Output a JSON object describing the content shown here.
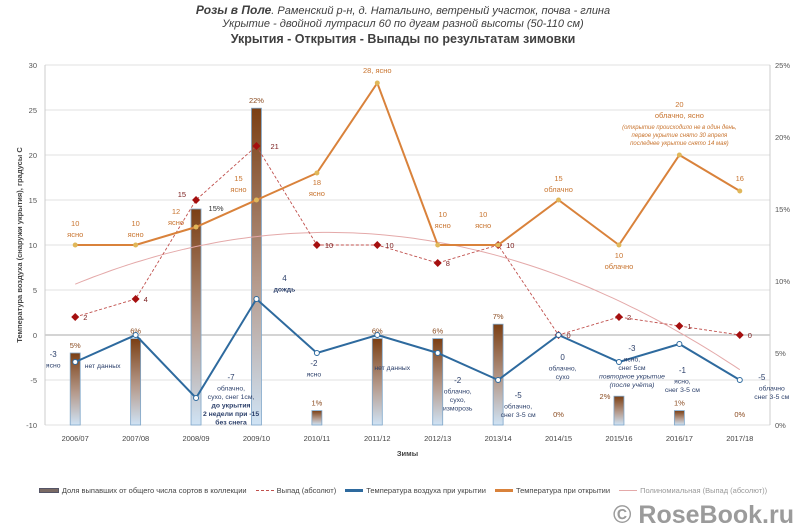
{
  "header": {
    "title_bold": "Розы в Поле",
    "title_rest": ". Раменский р-н, д. Натальино, ветреный участок, почва - глина",
    "subtitle": "Укрытие - двойной лутрасил 60 по дугам разной высоты (50-110 см)",
    "chart_title": "Укрытия - Открытия - Выпады по результатам зимовки"
  },
  "watermark": "© RoseBook.ru",
  "chart_data": {
    "type": "bar+line",
    "title": "Укрытия - Открытия - Выпады по результатам зимовки",
    "xlabel": "Зимы",
    "ylabel": "Температура воздуха (снаружи укрытия), градусы С",
    "ylim": [
      -10,
      30
    ],
    "y_ticks": [
      "-10",
      "-5",
      "0",
      "5",
      "10",
      "15",
      "20",
      "25",
      "30"
    ],
    "y2lim": [
      0,
      25
    ],
    "y2_ticks": [
      "0%",
      "5%",
      "10%",
      "15%",
      "20%",
      "25%"
    ],
    "grid": true,
    "legend_position": "bottom",
    "categories": [
      "2006/07",
      "2007/08",
      "2008/09",
      "2009/10",
      "2010/11",
      "2011/12",
      "2012/13",
      "2013/14",
      "2014/15",
      "2015/16",
      "2016/17",
      "2017/18"
    ],
    "series": [
      {
        "name": "Доля выпавших от общего числа сортов в коллекции",
        "type": "bar",
        "axis": "right",
        "unit": "%",
        "values": [
          5,
          6,
          15,
          22,
          1,
          6,
          6,
          7,
          0,
          2,
          1,
          0
        ],
        "labels": [
          "5%",
          "6%",
          "15%",
          "22%",
          "1%",
          "6%",
          "6%",
          "7%",
          "0%",
          "2%",
          "1%",
          "0%"
        ]
      },
      {
        "name": "Выпад (абсолют)",
        "type": "line-dashed",
        "color": "#c0504d",
        "marker_color": "#a50f0f",
        "values": [
          2,
          4,
          15,
          21,
          10,
          10,
          8,
          10,
          0,
          2,
          1,
          0
        ],
        "labels": [
          "2",
          "4",
          "15",
          "21",
          "10",
          "10",
          "8",
          "10",
          "0",
          "2",
          "1",
          "0"
        ]
      },
      {
        "name": "Температура воздуха при укрытии",
        "type": "line",
        "color": "#2e6a9e",
        "values": [
          -3,
          0,
          -7,
          4,
          -2,
          0,
          -2,
          -5,
          0,
          -3,
          -1,
          -5
        ],
        "labels": [
          [
            "-3",
            "ясно"
          ],
          [
            "нет данных"
          ],
          [
            "-7",
            "облачно,",
            "сухо, снег 1см,",
            "до укрытия",
            "2 недели  при -15",
            "без снега"
          ],
          [
            "4",
            "дождь"
          ],
          [
            "-2",
            "ясно"
          ],
          [
            "нет данных"
          ],
          [
            "-2",
            "облачно,",
            "сухо,",
            "изморозь"
          ],
          [
            "-5",
            "облачно,",
            "снег 3-5 см"
          ],
          [
            "0",
            "облачно,",
            "сухо"
          ],
          [
            "-3",
            "ясно,",
            "снег 5см",
            "повторное укрытие",
            "(после учёта)"
          ],
          [
            "-1",
            "ясно,",
            "снег 3-5 см"
          ],
          [
            "-5",
            "облачно",
            "снег 3-5 см"
          ]
        ]
      },
      {
        "name": "Температура при открытии",
        "type": "line",
        "color": "#d9823b",
        "values": [
          10,
          10,
          12,
          15,
          18,
          28,
          10,
          10,
          15,
          10,
          20,
          16
        ],
        "labels": [
          [
            "10",
            "ясно"
          ],
          [
            "10",
            "ясно"
          ],
          [
            "12",
            "ясно"
          ],
          [
            "15",
            "ясно"
          ],
          [
            "18",
            "ясно"
          ],
          [
            "28, ясно"
          ],
          [
            "10",
            "ясно"
          ],
          [
            "10",
            "ясно"
          ],
          [
            "15",
            "облачно"
          ],
          [
            "10",
            "облачно"
          ],
          [
            "20",
            "облачно, ясно",
            "(открытие происходило не в один день,",
            "первое укрытие снято 30 апреля",
            "последнее укрытие снято 14 мая)"
          ],
          [
            "16"
          ]
        ]
      },
      {
        "name": "Полиномиальная (Выпад (абсолют))",
        "type": "trendline-poly2",
        "color": "#e4a9a9"
      }
    ]
  }
}
